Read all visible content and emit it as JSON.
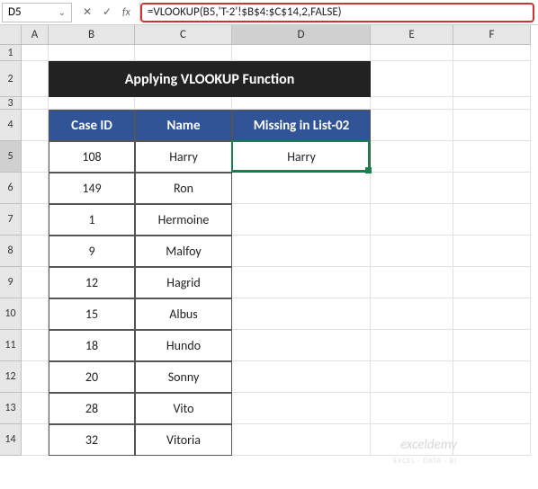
{
  "formula_bar": {
    "name_box": "D5",
    "formula": "=VLOOKUP(B5,'T-2'!$B$4:$C$14,2,FALSE)"
  },
  "columns": [
    {
      "label": "A",
      "width": 30
    },
    {
      "label": "B",
      "width": 96
    },
    {
      "label": "C",
      "width": 108
    },
    {
      "label": "D",
      "width": 154
    },
    {
      "label": "E",
      "width": 92
    },
    {
      "label": "F",
      "width": 86
    }
  ],
  "active_column_index": 3,
  "row_heights": {
    "default": 35,
    "r1": 18,
    "r2": 40,
    "r3": 14
  },
  "active_row": 5,
  "title": "Applying VLOOKUP Function",
  "headers": {
    "case_id": "Case ID",
    "name": "Name",
    "missing": "Missing in List-02"
  },
  "rows": [
    {
      "n": 5,
      "case_id": "108",
      "name": "Harry",
      "missing": "Harry"
    },
    {
      "n": 6,
      "case_id": "149",
      "name": "Ron",
      "missing": ""
    },
    {
      "n": 7,
      "case_id": "1",
      "name": "Hermoine",
      "missing": ""
    },
    {
      "n": 8,
      "case_id": "9",
      "name": "Malfoy",
      "missing": ""
    },
    {
      "n": 9,
      "case_id": "12",
      "name": "Hagrid",
      "missing": ""
    },
    {
      "n": 10,
      "case_id": "15",
      "name": "Albus",
      "missing": ""
    },
    {
      "n": 11,
      "case_id": "18",
      "name": "Hundo",
      "missing": ""
    },
    {
      "n": 12,
      "case_id": "20",
      "name": "Sonny",
      "missing": ""
    },
    {
      "n": 13,
      "case_id": "28",
      "name": "Vito",
      "missing": ""
    },
    {
      "n": 14,
      "case_id": "32",
      "name": "Vitoria",
      "missing": ""
    }
  ],
  "watermark": "exceldemy",
  "watermark_sub": "EXCEL · DATA · BI",
  "colors": {
    "title_bg": "#222222",
    "header_bg": "#305496",
    "selection": "#1a7f4b",
    "formula_border": "#cc3333"
  }
}
